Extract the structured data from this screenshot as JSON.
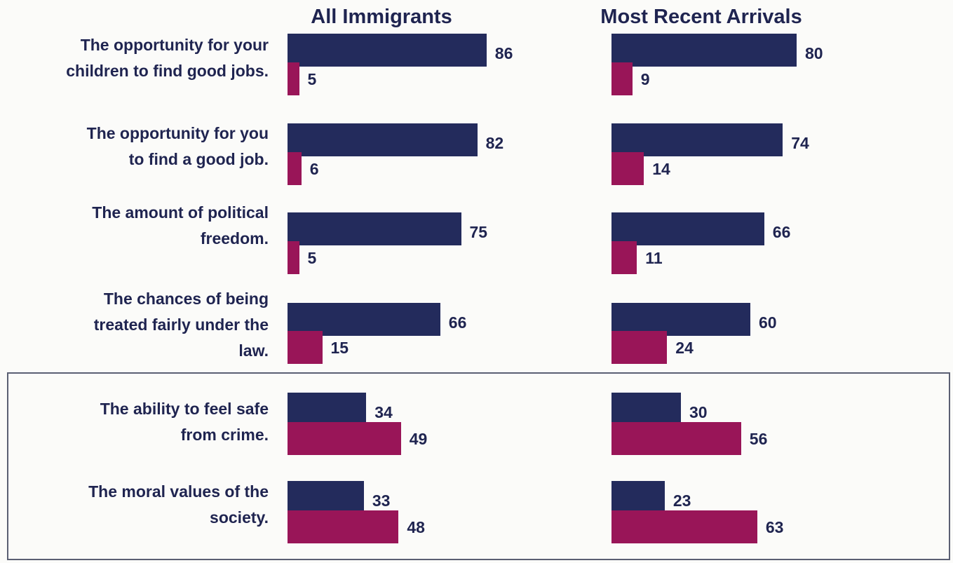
{
  "chart_data": {
    "type": "bar",
    "orientation": "horizontal",
    "panels": [
      {
        "title": "All Immigrants"
      },
      {
        "title": "Most Recent Arrivals"
      }
    ],
    "categories": [
      [
        "The opportunity for your",
        "children to find good jobs."
      ],
      [
        "The opportunity for you",
        "to find a good job."
      ],
      [
        "The amount of political",
        "freedom."
      ],
      [
        "The chances of being",
        "treated fairly under the",
        "law."
      ],
      [
        "The ability to feel safe",
        "from crime."
      ],
      [
        "The moral values of the",
        "society."
      ]
    ],
    "series": [
      {
        "color": "#232b5c",
        "values": {
          "All Immigrants": [
            86,
            82,
            75,
            66,
            34,
            33
          ],
          "Most Recent Arrivals": [
            80,
            74,
            66,
            60,
            30,
            23
          ]
        }
      },
      {
        "color": "#991558",
        "values": {
          "All Immigrants": [
            5,
            6,
            5,
            15,
            49,
            48
          ],
          "Most Recent Arrivals": [
            9,
            14,
            11,
            24,
            56,
            63
          ]
        }
      }
    ],
    "highlighted_categories": [
      4,
      5
    ],
    "legend": "none",
    "grid": false
  }
}
